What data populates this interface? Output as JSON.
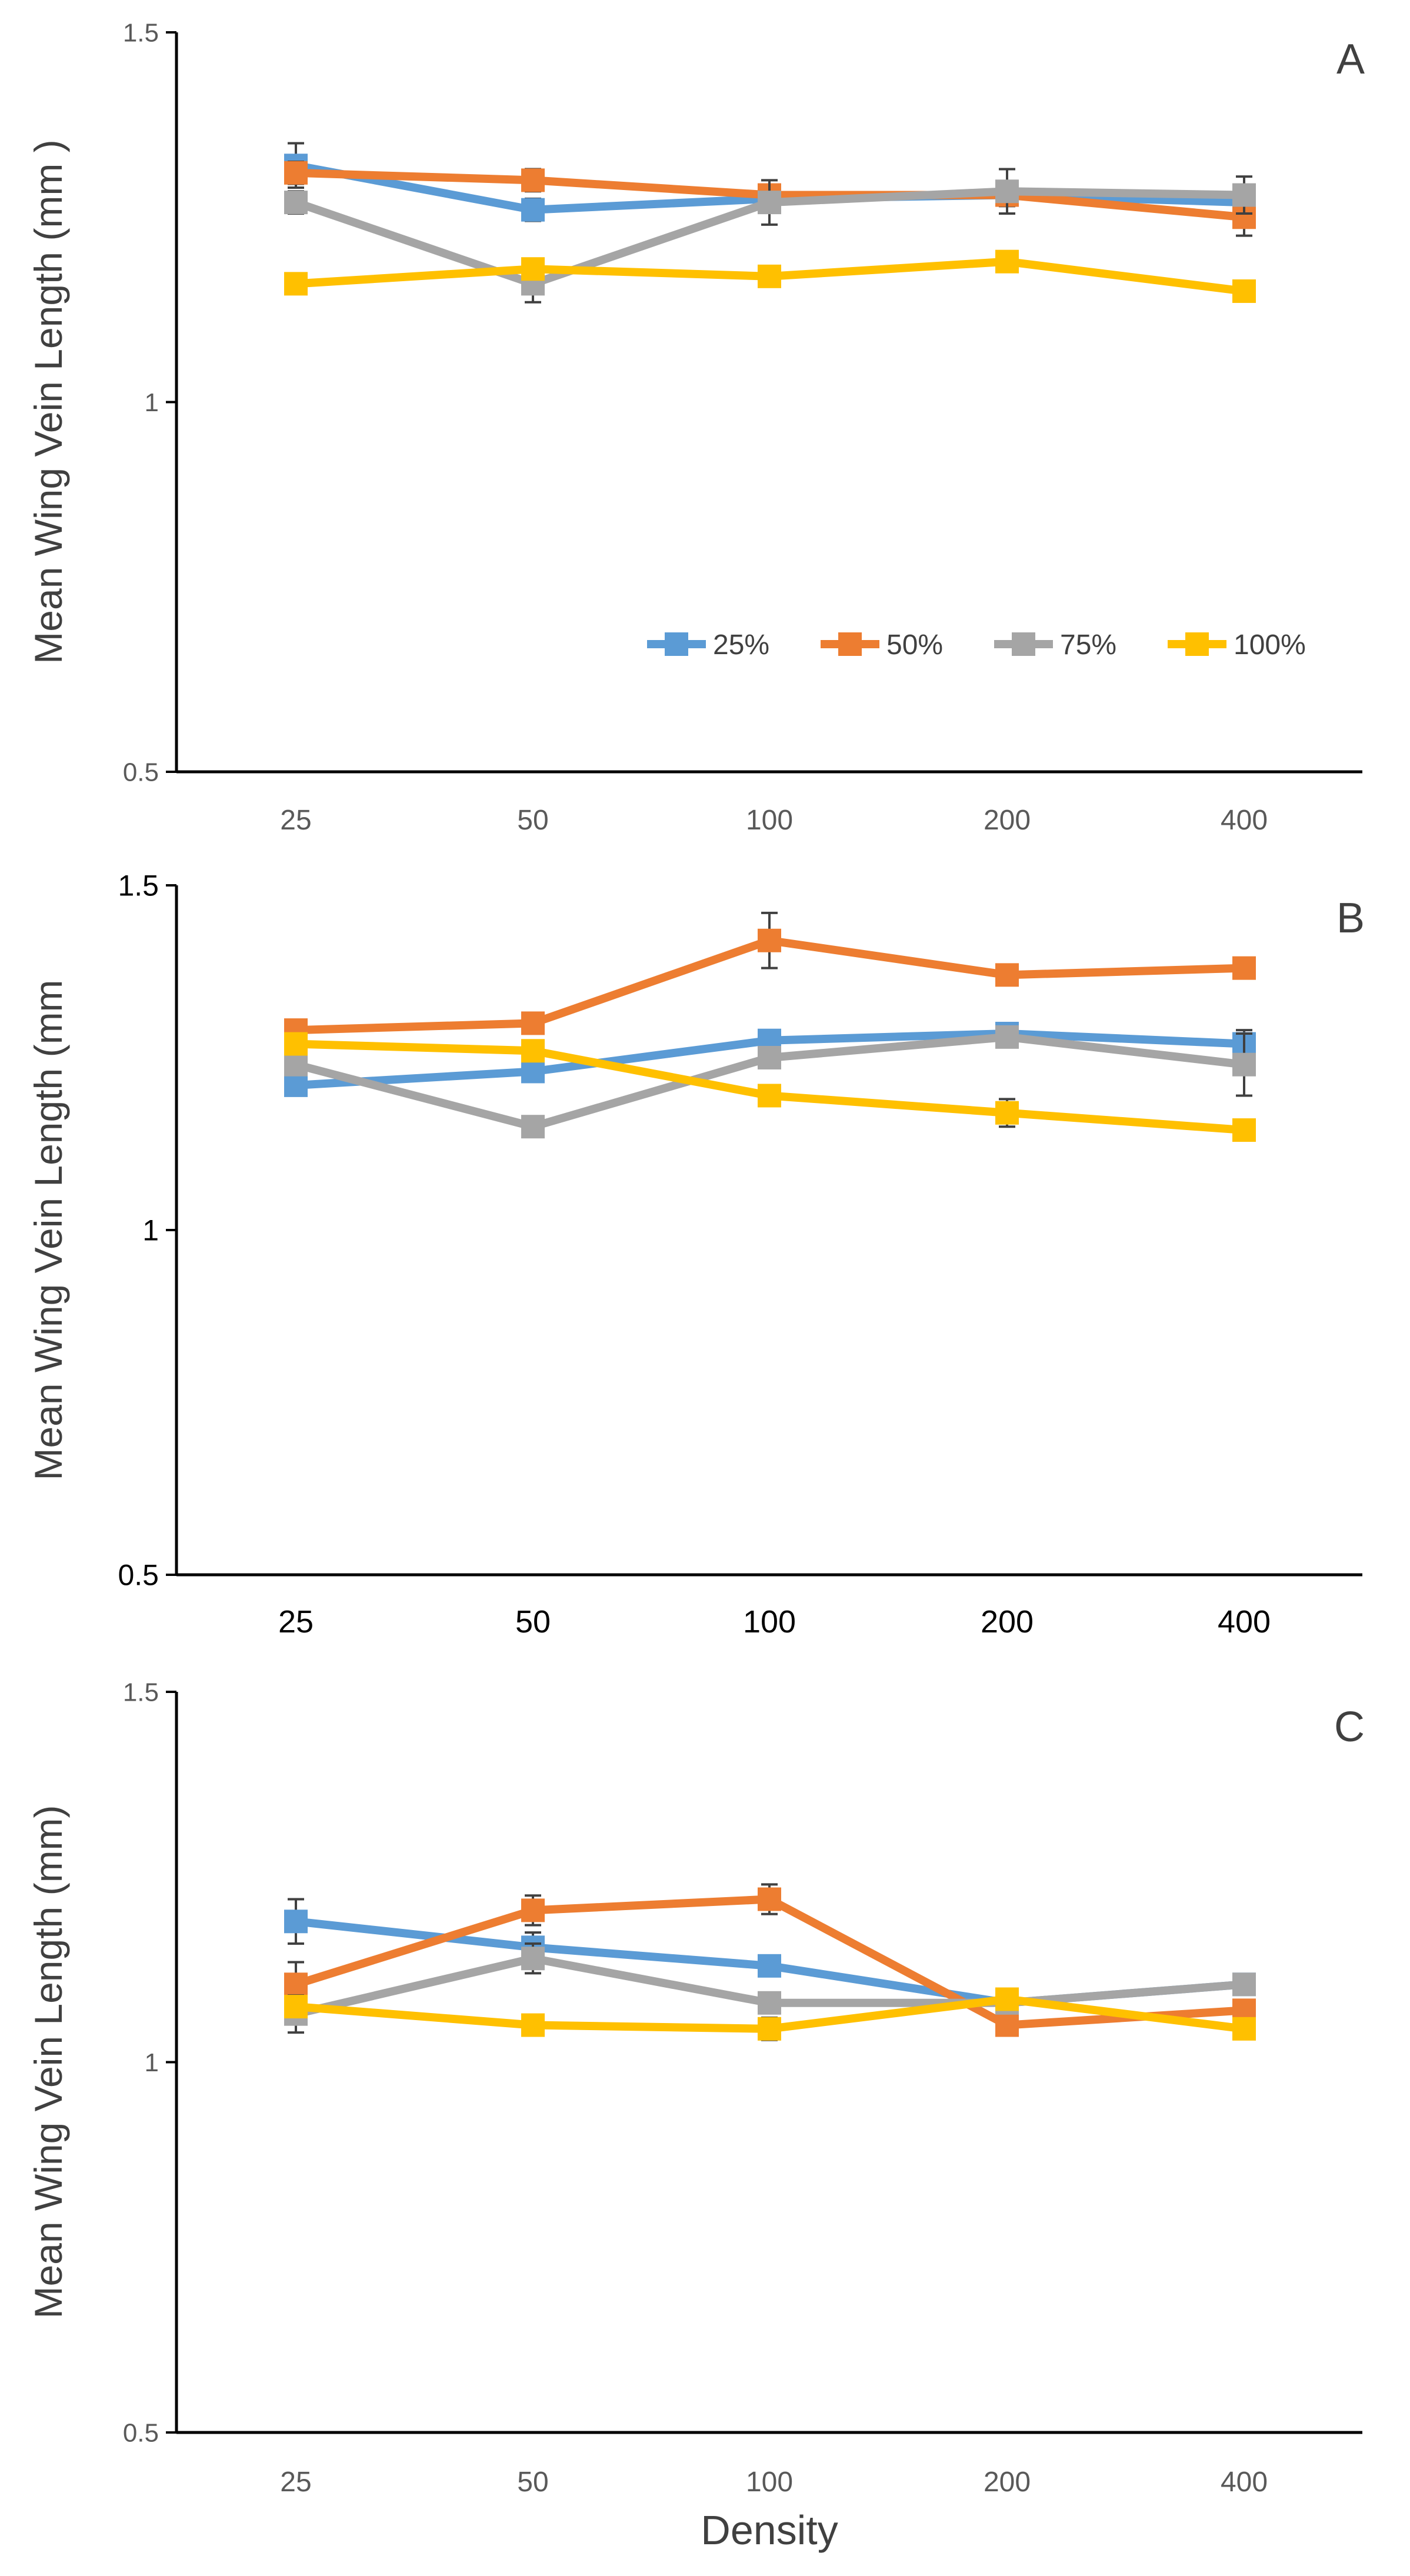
{
  "colors": {
    "25%": "#5b9bd5",
    "50%": "#ed7d31",
    "75%": "#a5a5a5",
    "100%": "#ffc000",
    "axis": "#000000",
    "tick_text": "#595959",
    "error_bar": "#404040"
  },
  "chart_data": [
    {
      "type": "line",
      "panel_label": "A",
      "ylabel": "Mean Wing Vein Length (mm )",
      "xlabel": "",
      "categories": [
        "25",
        "50",
        "100",
        "200",
        "400"
      ],
      "ylim": [
        0.5,
        1.5
      ],
      "y_ticks": [
        "0.5",
        "1",
        "1.5"
      ],
      "grid": false,
      "legend": "bottom-right",
      "series": [
        {
          "name": "25%",
          "values": [
            1.32,
            1.26,
            1.275,
            1.28,
            1.27
          ],
          "errors": [
            0.03,
            0.015,
            0.01,
            0.01,
            0.01
          ]
        },
        {
          "name": "50%",
          "values": [
            1.31,
            1.3,
            1.28,
            1.28,
            1.25
          ],
          "errors": [
            0.015,
            0.015,
            0.01,
            0.015,
            0.025
          ]
        },
        {
          "name": "75%",
          "values": [
            1.27,
            1.16,
            1.27,
            1.285,
            1.28
          ],
          "errors": [
            0.015,
            0.025,
            0.03,
            0.03,
            0.025
          ]
        },
        {
          "name": "100%",
          "values": [
            1.16,
            1.18,
            1.17,
            1.19,
            1.15
          ],
          "errors": [
            0.005,
            0.01,
            0.01,
            0.01,
            0.01
          ]
        }
      ]
    },
    {
      "type": "line",
      "panel_label": "B",
      "ylabel": "Mean Wing Vein Length (mm",
      "xlabel": "",
      "categories": [
        "25",
        "50",
        "100",
        "200",
        "400"
      ],
      "ylim": [
        0.5,
        1.5
      ],
      "y_ticks": [
        "0.5",
        "1",
        "1.5"
      ],
      "grid": false,
      "legend": "none",
      "series": [
        {
          "name": "25%",
          "values": [
            1.21,
            1.23,
            1.275,
            1.285,
            1.27
          ],
          "errors": [
            0.01,
            0.01,
            0.01,
            0.01,
            0.02
          ]
        },
        {
          "name": "50%",
          "values": [
            1.29,
            1.3,
            1.42,
            1.37,
            1.38
          ],
          "errors": [
            0.005,
            0.01,
            0.04,
            0.01,
            0.01
          ]
        },
        {
          "name": "75%",
          "values": [
            1.24,
            1.15,
            1.25,
            1.28,
            1.24
          ],
          "errors": [
            0.01,
            0.015,
            0.015,
            0.01,
            0.045
          ]
        },
        {
          "name": "100%",
          "values": [
            1.27,
            1.26,
            1.195,
            1.17,
            1.145
          ],
          "errors": [
            0.01,
            0.01,
            0.01,
            0.02,
            0.015
          ]
        }
      ]
    },
    {
      "type": "line",
      "panel_label": "C",
      "ylabel": "Mean Wing Vein Length (mm)",
      "xlabel": "Density",
      "categories": [
        "25",
        "50",
        "100",
        "200",
        "400"
      ],
      "ylim": [
        0.5,
        1.5
      ],
      "y_ticks": [
        "0.5",
        "1",
        "1.5"
      ],
      "grid": false,
      "legend": "none",
      "series": [
        {
          "name": "25%",
          "values": [
            1.19,
            1.155,
            1.13,
            1.08,
            1.105
          ],
          "errors": [
            0.03,
            0.02,
            0.01,
            0.01,
            0.01
          ]
        },
        {
          "name": "50%",
          "values": [
            1.105,
            1.205,
            1.22,
            1.05,
            1.07
          ],
          "errors": [
            0.03,
            0.02,
            0.02,
            0.01,
            0.01
          ]
        },
        {
          "name": "75%",
          "values": [
            1.065,
            1.14,
            1.08,
            1.08,
            1.105
          ],
          "errors": [
            0.025,
            0.02,
            0.01,
            0.01,
            0.01
          ]
        },
        {
          "name": "100%",
          "values": [
            1.075,
            1.05,
            1.045,
            1.085,
            1.045
          ],
          "errors": [
            0.01,
            0.01,
            0.015,
            0.01,
            0.01
          ]
        }
      ]
    }
  ]
}
